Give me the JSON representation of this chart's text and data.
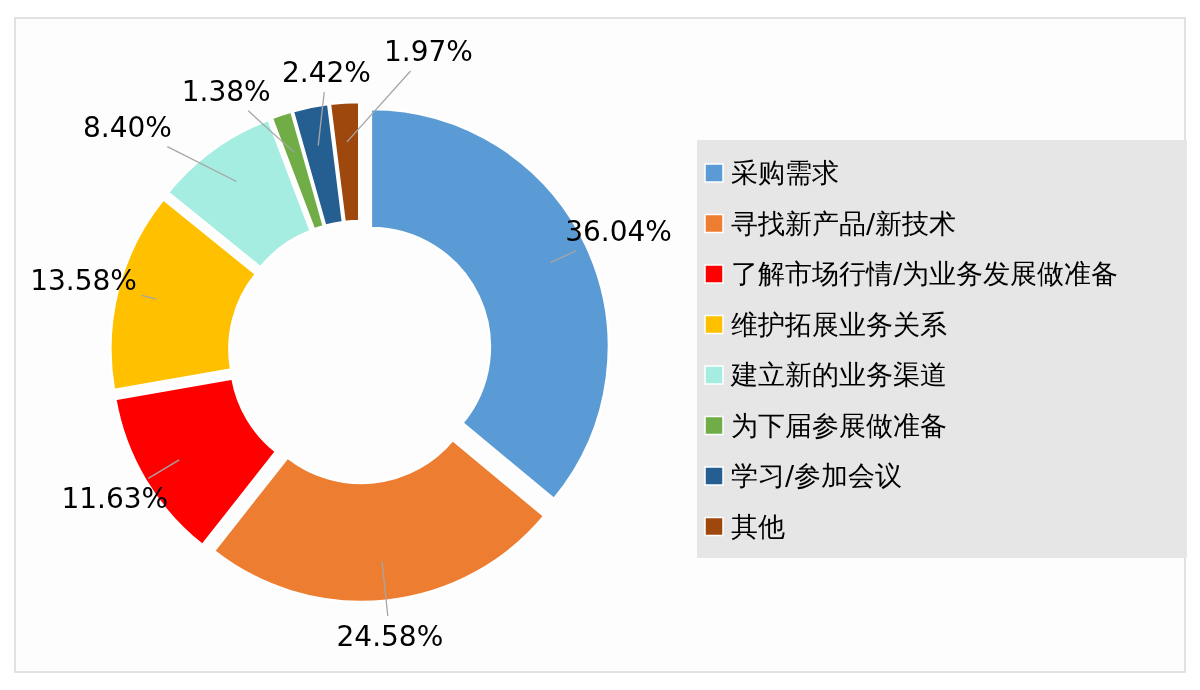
{
  "chart_data": {
    "type": "donut",
    "categories": [
      "采购需求",
      "寻找新产品/新技术",
      "了解市场行情/为业务发展做准备",
      "维护拓展业务关系",
      "建立新的业务渠道",
      "为下届参展做准备",
      "学习/参加会议",
      "其他"
    ],
    "values": [
      36.04,
      24.58,
      11.63,
      13.58,
      8.4,
      1.38,
      2.42,
      1.97
    ],
    "value_labels": [
      "36.04%",
      "24.58%",
      "11.63%",
      "13.58%",
      "8.40%",
      "1.38%",
      "2.42%",
      "1.97%"
    ],
    "colors": [
      "#5b9bd5",
      "#ed7d31",
      "#ff0000",
      "#ffc000",
      "#a5ede0",
      "#70ad47",
      "#255e91",
      "#9e480e"
    ],
    "legend": "right"
  }
}
